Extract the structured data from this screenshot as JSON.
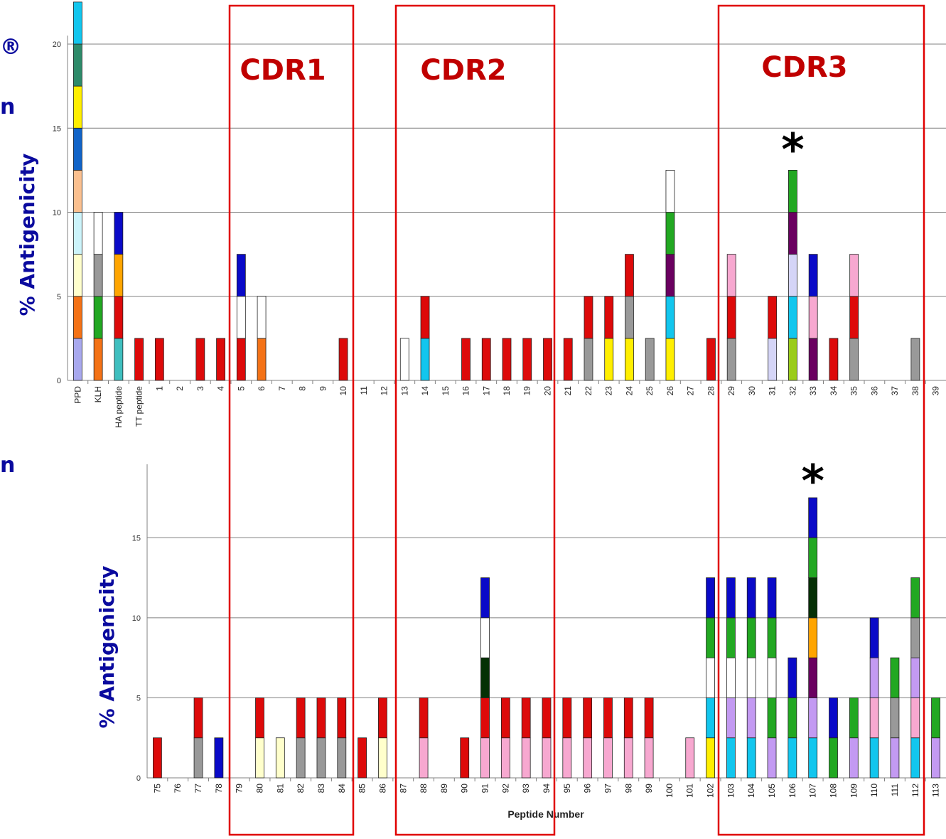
{
  "colors": {
    "red": "#dd0a0a",
    "orange": "#f47216",
    "yellow": "#ffef00",
    "gray": "#999999",
    "blue": "#0a0ac8",
    "green": "#22a822",
    "cyan": "#12c6ee",
    "lavender": "#a8a8ee",
    "white": "#ffffff",
    "cream": "#ffffcc",
    "paleblue": "#ccf4fb",
    "peach": "#fbc08f",
    "royal": "#1164c8",
    "teal": "#2e8b6a",
    "teal2": "#3fbfbf",
    "purple": "#6a0060",
    "dkgreen": "#053005",
    "amber": "#ffa500",
    "pink": "#f7a8d0",
    "violet": "#c39af2",
    "lilac": "#d5d5f7",
    "olive": "#9acc1a",
    "axis_label": "#0a0a9e",
    "cdr_box": "#e00000",
    "cdr_text": "#c00000"
  },
  "cdr_regions": [
    {
      "label": "CDR1"
    },
    {
      "label": "CDR2"
    },
    {
      "label": "CDR3"
    }
  ],
  "side_marks": [
    "®",
    "n",
    "n"
  ],
  "chart_data": [
    {
      "type": "bar",
      "stacked": true,
      "ylabel": "% Antigenicity",
      "xlabel": "",
      "ylim": [
        0,
        20
      ],
      "yticks": [
        0,
        5,
        10,
        15,
        20
      ],
      "grid": true,
      "annotation": {
        "text": "*",
        "category": "32"
      },
      "categories": [
        "PPD",
        "KLH",
        "HA peptide",
        "TT peptide",
        "1",
        "2",
        "3",
        "4",
        "5",
        "6",
        "7",
        "8",
        "9",
        "10",
        "11",
        "12",
        "13",
        "14",
        "15",
        "16",
        "17",
        "18",
        "19",
        "20",
        "21",
        "22",
        "23",
        "24",
        "25",
        "26",
        "27",
        "28",
        "29",
        "30",
        "31",
        "32",
        "33",
        "34",
        "35",
        "36",
        "37",
        "38",
        "39"
      ],
      "stacks": [
        [
          "lavender",
          "orange",
          "cream",
          "paleblue",
          "peach",
          "royal",
          "yellow",
          "teal",
          "cyan"
        ],
        [
          "orange",
          "green",
          "gray",
          "white"
        ],
        [
          "teal2",
          "red",
          "amber",
          "blue"
        ],
        [
          "red"
        ],
        [
          "red"
        ],
        [],
        [
          "red"
        ],
        [
          "red"
        ],
        [
          "red",
          "white",
          "blue"
        ],
        [
          "orange",
          "white"
        ],
        [],
        [],
        [],
        [
          "red"
        ],
        [],
        [],
        [
          "white"
        ],
        [
          "cyan",
          "red"
        ],
        [],
        [
          "red"
        ],
        [
          "red"
        ],
        [
          "red"
        ],
        [
          "red"
        ],
        [
          "red"
        ],
        [
          "red"
        ],
        [
          "gray",
          "red"
        ],
        [
          "yellow",
          "red"
        ],
        [
          "yellow",
          "gray",
          "red"
        ],
        [
          "gray"
        ],
        [
          "yellow",
          "cyan",
          "purple",
          "green",
          "white"
        ],
        [],
        [
          "red"
        ],
        [
          "gray",
          "red",
          "pink"
        ],
        [],
        [
          "lilac",
          "red"
        ],
        [
          "olive",
          "cyan",
          "lilac",
          "purple",
          "green"
        ],
        [
          "purple",
          "pink",
          "blue"
        ],
        [
          "red"
        ],
        [
          "gray",
          "red",
          "pink"
        ],
        [],
        [],
        [
          "gray"
        ],
        []
      ]
    },
    {
      "type": "bar",
      "stacked": true,
      "ylabel": "% Antigenicity",
      "xlabel": "Peptide Number",
      "ylim": [
        0,
        17.5
      ],
      "yticks": [
        0,
        5,
        10,
        15
      ],
      "grid": true,
      "annotation": {
        "text": "*",
        "category": "107"
      },
      "categories": [
        "75",
        "76",
        "77",
        "78",
        "79",
        "80",
        "81",
        "82",
        "83",
        "84",
        "85",
        "86",
        "87",
        "88",
        "89",
        "90",
        "91",
        "92",
        "93",
        "94",
        "95",
        "96",
        "97",
        "98",
        "99",
        "100",
        "101",
        "102",
        "103",
        "104",
        "105",
        "106",
        "107",
        "108",
        "109",
        "110",
        "111",
        "112",
        "113"
      ],
      "stacks": [
        [
          "red"
        ],
        [],
        [
          "gray",
          "red"
        ],
        [
          "blue"
        ],
        [],
        [
          "cream",
          "red"
        ],
        [
          "cream"
        ],
        [
          "gray",
          "red"
        ],
        [
          "gray",
          "red"
        ],
        [
          "gray",
          "red"
        ],
        [
          "red"
        ],
        [
          "cream",
          "red"
        ],
        [],
        [
          "pink",
          "red"
        ],
        [],
        [
          "red"
        ],
        [
          "pink",
          "red",
          "dkgreen",
          "white",
          "blue"
        ],
        [
          "pink",
          "red"
        ],
        [
          "pink",
          "red"
        ],
        [
          "pink",
          "red"
        ],
        [
          "pink",
          "red"
        ],
        [
          "pink",
          "red"
        ],
        [
          "pink",
          "red"
        ],
        [
          "pink",
          "red"
        ],
        [
          "pink",
          "red"
        ],
        [],
        [
          "pink"
        ],
        [
          "yellow",
          "cyan",
          "white",
          "green",
          "blue"
        ],
        [
          "cyan",
          "violet",
          "white",
          "green",
          "blue"
        ],
        [
          "cyan",
          "violet",
          "white",
          "green",
          "blue"
        ],
        [
          "violet",
          "green",
          "white",
          "green",
          "blue"
        ],
        [
          "cyan",
          "green",
          "blue"
        ],
        [
          "cyan",
          "violet",
          "purple",
          "amber",
          "dkgreen",
          "green",
          "blue"
        ],
        [
          "green",
          "blue"
        ],
        [
          "violet",
          "green"
        ],
        [
          "cyan",
          "pink",
          "violet",
          "blue"
        ],
        [
          "violet",
          "gray",
          "green"
        ],
        [
          "cyan",
          "pink",
          "violet",
          "gray",
          "green"
        ],
        [
          "violet",
          "green"
        ]
      ]
    }
  ]
}
